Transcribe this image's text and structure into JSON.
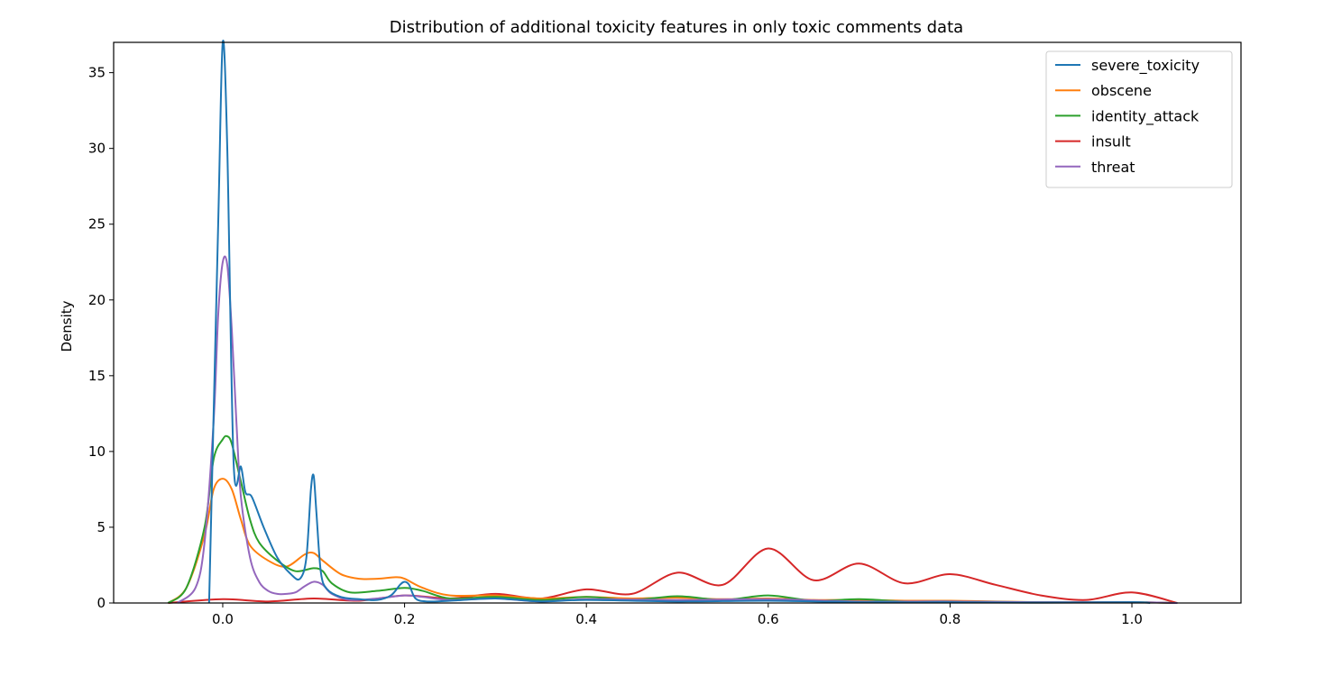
{
  "chart_data": {
    "type": "line",
    "title": "Distribution of additional toxicity features in only toxic comments data",
    "xlabel": "",
    "ylabel": "Density",
    "xlim": [
      -0.12,
      1.12
    ],
    "ylim": [
      0,
      37.0
    ],
    "xticks": [
      0.0,
      0.2,
      0.4,
      0.6,
      0.8,
      1.0
    ],
    "xtick_labels": [
      "0.0",
      "0.2",
      "0.4",
      "0.6",
      "0.8",
      "1.0"
    ],
    "yticks": [
      0,
      5,
      10,
      15,
      20,
      25,
      30,
      35
    ],
    "ytick_labels": [
      "0",
      "5",
      "10",
      "15",
      "20",
      "25",
      "30",
      "35"
    ],
    "grid": false,
    "legend_position": "top-right",
    "series": [
      {
        "name": "severe_toxicity",
        "color": "#1f77b4",
        "x": [
          -0.015,
          -0.005,
          0.0,
          0.005,
          0.012,
          0.02,
          0.025,
          0.032,
          0.045,
          0.06,
          0.075,
          0.085,
          0.092,
          0.097,
          0.1,
          0.103,
          0.108,
          0.115,
          0.13,
          0.15,
          0.17,
          0.185,
          0.195,
          0.2,
          0.205,
          0.212,
          0.225,
          0.25,
          0.3,
          0.35,
          0.4,
          0.5,
          0.6,
          0.7,
          0.8,
          0.9,
          1.0,
          1.02
        ],
        "y": [
          0.0,
          25.0,
          37.0,
          30.0,
          9.2,
          9.0,
          7.3,
          7.0,
          5.0,
          3.0,
          1.9,
          1.6,
          3.0,
          7.5,
          8.4,
          6.0,
          2.0,
          0.9,
          0.4,
          0.25,
          0.2,
          0.5,
          1.2,
          1.4,
          1.2,
          0.3,
          0.1,
          0.15,
          0.3,
          0.1,
          0.2,
          0.1,
          0.15,
          0.05,
          0.05,
          0.02,
          0.05,
          0.0
        ]
      },
      {
        "name": "obscene",
        "color": "#ff7f0e",
        "x": [
          -0.06,
          -0.04,
          -0.02,
          -0.01,
          0.0,
          0.01,
          0.02,
          0.03,
          0.05,
          0.07,
          0.09,
          0.1,
          0.11,
          0.13,
          0.15,
          0.17,
          0.19,
          0.2,
          0.22,
          0.25,
          0.3,
          0.35,
          0.4,
          0.45,
          0.5,
          0.55,
          0.6,
          0.65,
          0.7,
          0.75,
          0.8,
          0.85,
          0.9,
          0.95,
          1.0,
          1.05
        ],
        "y": [
          0.0,
          1.0,
          4.5,
          7.5,
          8.2,
          7.5,
          5.5,
          3.8,
          2.8,
          2.4,
          3.2,
          3.3,
          2.8,
          1.9,
          1.6,
          1.6,
          1.7,
          1.6,
          1.0,
          0.5,
          0.5,
          0.3,
          0.4,
          0.3,
          0.35,
          0.25,
          0.3,
          0.2,
          0.2,
          0.15,
          0.15,
          0.1,
          0.05,
          0.05,
          0.05,
          0.0
        ]
      },
      {
        "name": "identity_attack",
        "color": "#2ca02c",
        "x": [
          -0.06,
          -0.04,
          -0.02,
          -0.01,
          0.0,
          0.005,
          0.01,
          0.02,
          0.03,
          0.04,
          0.06,
          0.08,
          0.1,
          0.11,
          0.12,
          0.14,
          0.17,
          0.2,
          0.22,
          0.25,
          0.3,
          0.35,
          0.4,
          0.45,
          0.5,
          0.55,
          0.6,
          0.65,
          0.7,
          0.75,
          0.8,
          0.9,
          1.0,
          1.05
        ],
        "y": [
          0.0,
          1.0,
          5.0,
          9.5,
          10.8,
          11.0,
          10.5,
          8.0,
          5.5,
          4.0,
          2.8,
          2.1,
          2.3,
          2.1,
          1.3,
          0.7,
          0.8,
          1.0,
          0.8,
          0.3,
          0.4,
          0.2,
          0.4,
          0.2,
          0.45,
          0.2,
          0.5,
          0.15,
          0.25,
          0.1,
          0.1,
          0.05,
          0.05,
          0.0
        ]
      },
      {
        "name": "insult",
        "color": "#d62728",
        "x": [
          -0.06,
          0.0,
          0.05,
          0.1,
          0.15,
          0.2,
          0.25,
          0.3,
          0.35,
          0.4,
          0.45,
          0.5,
          0.55,
          0.6,
          0.65,
          0.7,
          0.75,
          0.8,
          0.85,
          0.9,
          0.95,
          1.0,
          1.05
        ],
        "y": [
          0.0,
          0.25,
          0.1,
          0.3,
          0.15,
          0.5,
          0.3,
          0.6,
          0.3,
          0.9,
          0.6,
          2.0,
          1.2,
          3.6,
          1.5,
          2.6,
          1.3,
          1.9,
          1.2,
          0.5,
          0.2,
          0.7,
          0.0
        ]
      },
      {
        "name": "threat",
        "color": "#9467bd",
        "x": [
          -0.05,
          -0.03,
          -0.02,
          -0.01,
          -0.005,
          0.0,
          0.005,
          0.01,
          0.015,
          0.02,
          0.03,
          0.04,
          0.05,
          0.06,
          0.07,
          0.08,
          0.09,
          0.1,
          0.11,
          0.12,
          0.14,
          0.17,
          0.2,
          0.22,
          0.25,
          0.3,
          0.35,
          0.4,
          0.5,
          0.6,
          0.7,
          0.8,
          0.9,
          1.0,
          1.05
        ],
        "y": [
          0.0,
          1.0,
          4.0,
          12.0,
          19.0,
          22.5,
          22.3,
          18.0,
          12.0,
          7.0,
          3.0,
          1.4,
          0.8,
          0.6,
          0.6,
          0.7,
          1.1,
          1.4,
          1.2,
          0.6,
          0.2,
          0.3,
          0.5,
          0.4,
          0.2,
          0.3,
          0.1,
          0.25,
          0.2,
          0.25,
          0.1,
          0.1,
          0.05,
          0.05,
          0.0
        ]
      }
    ]
  }
}
